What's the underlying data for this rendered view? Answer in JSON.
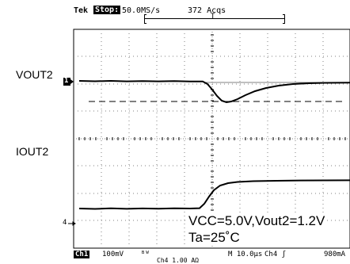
{
  "top_status": {
    "brand": "Tek",
    "run_state": "Stop:",
    "sample_rate": "50.0MS/s",
    "acquisitions": "372 Acqs",
    "trigger_marker": "T"
  },
  "channels": {
    "vout_label": "VOUT2",
    "iout_label": "IOUT2",
    "ch1_marker": "1",
    "ch4_marker": "4"
  },
  "annotation": {
    "line1": "VCC=5.0V,Vout2=1.2V",
    "line2": "Ta=25˚C"
  },
  "bottom_status": {
    "channel": "Ch1",
    "ch1_scale": "100mV",
    "bw_symbol": "ᴮᵂ",
    "ch4_scale": "Ch4  1.00 AΩ",
    "timebase": "M 10.0μs",
    "trigger_source": "Ch4 ʃ",
    "trigger_level": "980mA"
  },
  "colors": {
    "trace": "#000000",
    "grid": "#808080",
    "background": "#ffffff"
  }
}
